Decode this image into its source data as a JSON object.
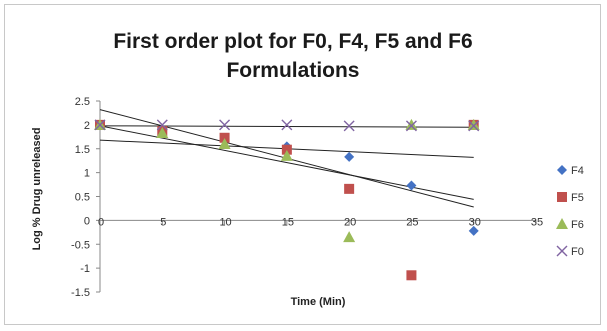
{
  "chart_data": {
    "type": "scatter",
    "title_lines": [
      "First order plot for F0, F4, F5 and F6",
      "Formulations"
    ],
    "xlabel": "Time (Min)",
    "ylabel": "Log % Drug unreleased",
    "xlim": [
      0,
      35
    ],
    "ylim": [
      -1.5,
      2.5
    ],
    "x_ticks": [
      "0",
      "5",
      "10",
      "15",
      "20",
      "25",
      "30",
      "35"
    ],
    "y_ticks": [
      "2.5",
      "2",
      "1.5",
      "1",
      "0.5",
      "0",
      "-0.5",
      "-1",
      "-1.5"
    ],
    "grid": false,
    "legend_position": "right",
    "series": [
      {
        "name": "F4",
        "marker": "diamond",
        "color": "#4472C4",
        "points": [
          [
            0,
            2.0
          ],
          [
            5,
            1.88
          ],
          [
            10,
            1.68
          ],
          [
            15,
            1.55
          ],
          [
            20,
            1.33
          ],
          [
            25,
            0.73
          ],
          [
            30,
            -0.22
          ]
        ],
        "trendline": [
          [
            0,
            1.98
          ],
          [
            30,
            0.44
          ]
        ]
      },
      {
        "name": "F5",
        "marker": "square",
        "color": "#C0504D",
        "points": [
          [
            0,
            2.0
          ],
          [
            5,
            1.87
          ],
          [
            10,
            1.73
          ],
          [
            15,
            1.48
          ],
          [
            20,
            0.66
          ],
          [
            25,
            -1.15
          ],
          [
            30,
            2.0
          ]
        ],
        "trendline": [
          [
            0,
            2.32
          ],
          [
            30,
            0.28
          ]
        ]
      },
      {
        "name": "F6",
        "marker": "triangle",
        "color": "#9BBB59",
        "points": [
          [
            0,
            2.0
          ],
          [
            5,
            1.83
          ],
          [
            10,
            1.6
          ],
          [
            15,
            1.35
          ],
          [
            20,
            -0.35
          ],
          [
            25,
            2.0
          ],
          [
            30,
            2.0
          ]
        ],
        "trendline": [
          [
            0,
            1.68
          ],
          [
            30,
            1.32
          ]
        ]
      },
      {
        "name": "F0",
        "marker": "x",
        "color": "#8064A2",
        "points": [
          [
            0,
            2.0
          ],
          [
            5,
            2.0
          ],
          [
            10,
            2.0
          ],
          [
            15,
            2.0
          ],
          [
            20,
            1.98
          ],
          [
            25,
            1.98
          ],
          [
            30,
            1.98
          ]
        ],
        "trendline": [
          [
            0,
            1.98
          ],
          [
            30,
            1.95
          ]
        ]
      }
    ]
  }
}
